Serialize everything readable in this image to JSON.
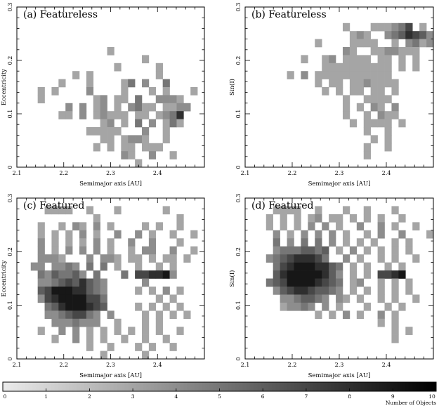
{
  "chart_data": {
    "type": "heatmap",
    "grid": {
      "x_min": 2.1,
      "x_max": 2.5,
      "nx": 27,
      "y_min": 0,
      "y_max": 0.3,
      "ny": 20
    },
    "panels": [
      {
        "title": "(a) Featureless",
        "xlabel": "Semimajor axis [AU]",
        "ylabel": "Eccentricity",
        "xticks": [
          "2.1",
          "2.2",
          "2.3",
          "2.4"
        ],
        "yticks": [
          "0",
          "0.1",
          "0.2",
          "0.3"
        ],
        "rows": [
          "...........................",
          "..........................",
          "..........................",
          "...........................",
          "........................",
          ".............3...........",
          "..................3.....",
          "..............3.....3....",
          "........3.3.........3....",
          "......3...3....35.4..5....",
          "...3.3....4....3...3.3...3",
          "...3.......34.33.5..4443.",
          ".......4.4.34.3.4533.3344.",
          "......33.4.34333.33.3458.",
          "............34.3.5.4.353.",
          "..........33333...4..3...",
          "............33.3443..3..",
          "...........3.3.33.333....",
          "...............43..4..3..",
          ".................3........."
        ]
      },
      {
        "title": "(b) Featureless",
        "xlabel": "Semimajor axis [AU]",
        "ylabel": "Sin(I)",
        "xticks": [
          "2.1",
          "2.2",
          "2.3",
          "2.4"
        ],
        "yticks": [
          "0",
          "0.1",
          "0.2",
          "0.3"
        ],
        "rows": [
          "...........................",
          "...........................",
          "..............3...333457.3.",
          "...............343..4568764",
          "..........3....3333..3.4534",
          "..............43..3344333..",
          "........3..34.3333.33.3.3.",
          "...........3333333333.3.3.",
          "......3.4.33333333333.....",
          "..........3.33.3343333...",
          "...........3.3.33.33.3...",
          "..............3..3333....",
          "..............3.3.43.4...",
          "..............3..3.433...",
          "...............3.3333.3..",
          ".................3..3....",
          "..................3.3....",
          ".................3..3....",
          ".................3........",
          "..........................."
        ]
      },
      {
        "title": "(c) Featured",
        "xlabel": "Semimajor axis [AU]",
        "ylabel": "Eccentricity",
        "xticks": [
          "2.1",
          "2.2",
          "2.3",
          "2.4"
        ],
        "yticks": [
          "0",
          "0.1",
          "0.2",
          "0.3"
        ],
        "rows": [
          "...........................",
          "....3333..3...3......3....",
          "...........3...........3..",
          "...3..3.43.4.3....3.3..3...",
          "...3.3.3.4.3..4..4.3..3..3.",
          "...4.3.3.3.4.3..4..4...3...",
          "...4.3.4.4.4.3..3.44..4..3.",
          "...4443...4.443.33.3.33.3.",
          "..44.4454.5.5.3..3..3.3...",
          "...5465564.5...5.778894....",
          "...4456768654.....4.......",
          "...6799988654....3.3.4.3..",
          "...4789999775.......3.3...",
          "....568999876....3.3.3.3..",
          "....44567754.4....3.3.3.3.",
          ".....4445444..3...3.3.....",
          "...3..4.4.3.3.3.3.3.3..3..",
          ".....3..4.3.3..3..3..3....",
          "..........3..3...3.3..3...",
          "............3.....3......."
        ]
      },
      {
        "title": "(d) Featured",
        "xlabel": "Semimajor axis [AU]",
        "ylabel": "Sin(I)",
        "xticks": [
          "2.1",
          "2.2",
          "2.3",
          "2.4"
        ],
        "yticks": [
          "0",
          "0.1",
          "0.2",
          "0.3"
        ],
        "rows": [
          "...........................",
          "....3333..3...3..3...3....",
          "...3.3.3.34.33.3.3.3..3...",
          "...3.3.3.4.4.3..4..4.3..3..",
          "....4.3.4.4.4.3..3.4..4...3",
          "....5.4.5.5.4.3.3.3..3.3..",
          "....45556656.3.4.3.3.3.3..",
          "...456788875..4.3..3.3..3.",
          "....5789998865.3.3..3.3...",
          "....6899999864.3.3.7789...",
          "...56799998765.34..3.3.3..",
          "....4678876654.3.3.3.3.3..",
          ".....4456654.43.3..3.3..3.",
          ".....34454.4.3...3..3.3...",
          "..........3.3.4.3..4.3...",
          "...................3.3....",
          ".....................3.3..",
          ".....................3....",
          "...........................",
          "..........................."
        ]
      }
    ],
    "colorbar": {
      "ticks": [
        "0",
        "1",
        "2",
        "3",
        "4",
        "5",
        "6",
        "7",
        "8",
        "9",
        "10"
      ],
      "label": "Number of Objects",
      "vmin": 0,
      "vmax": 10
    }
  }
}
